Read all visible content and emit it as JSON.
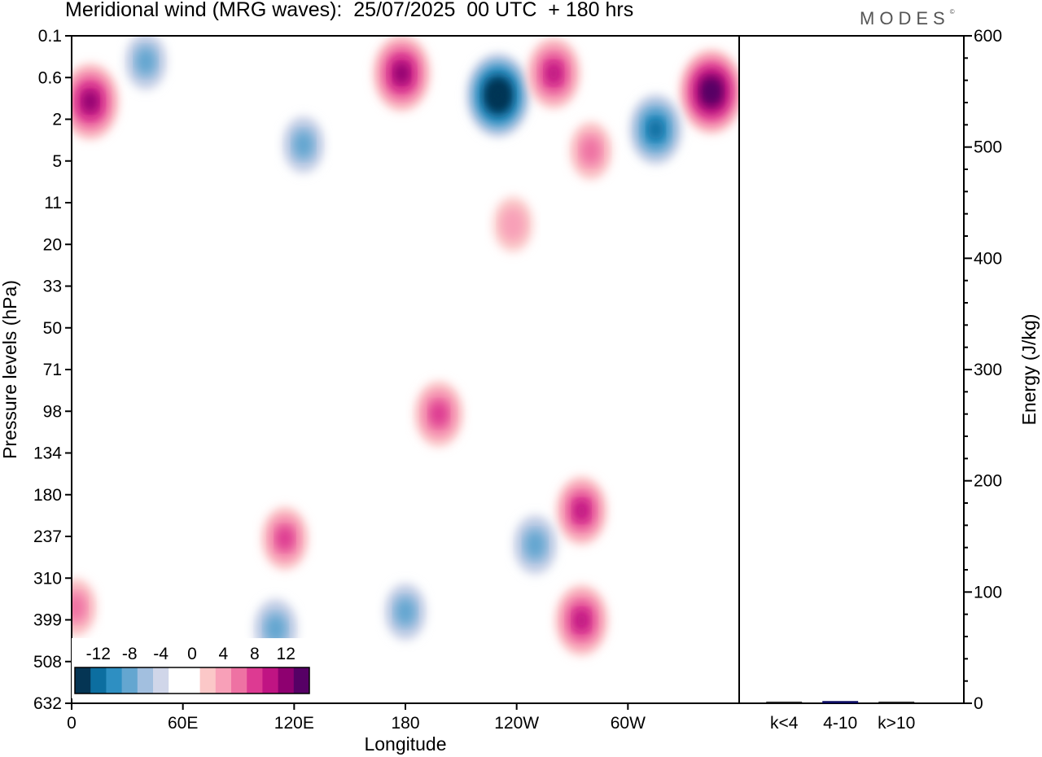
{
  "title": "Meridional wind (MRG waves):  25/07/2025  00 UTC  + 180 hrs",
  "brand": "MODES",
  "chart_data": [
    {
      "type": "heatmap",
      "title": "Meridional wind (MRG waves):  25/07/2025  00 UTC  + 180 hrs",
      "xlabel": "Longitude",
      "ylabel": "Pressure levels (hPa)",
      "x_ticks": [
        "0",
        "60E",
        "120E",
        "180",
        "120W",
        "60W"
      ],
      "x_tick_degrees": [
        0,
        60,
        120,
        180,
        240,
        300
      ],
      "xlim": [
        0,
        360
      ],
      "y_ticks": [
        "0.1",
        "0.6",
        "2",
        "5",
        "11",
        "20",
        "33",
        "50",
        "71",
        "98",
        "134",
        "180",
        "237",
        "310",
        "399",
        "508",
        "632"
      ],
      "colorbar": {
        "labels": [
          "-12",
          "-8",
          "-4",
          "0",
          "4",
          "8",
          "12"
        ],
        "colors": [
          "#053554",
          "#0c6ea0",
          "#2e8fc2",
          "#64a6d0",
          "#a2bfdf",
          "#d0d6e9",
          "#ffffff",
          "#ffffff",
          "#fbc8c8",
          "#f8a0b8",
          "#ee72a3",
          "#dd3a92",
          "#c01483",
          "#8e0070",
          "#560065"
        ]
      },
      "features": [
        {
          "lon": 230,
          "level": 1.0,
          "value": -16
        },
        {
          "lon": 345,
          "level": 0.9,
          "value": 16
        },
        {
          "lon": 10,
          "level": 1.2,
          "value": 13
        },
        {
          "lon": 178,
          "level": 0.5,
          "value": 13
        },
        {
          "lon": 260,
          "level": 0.5,
          "value": 11
        },
        {
          "lon": 315,
          "level": 2.5,
          "value": -11
        },
        {
          "lon": 40,
          "level": 0.3,
          "value": -6
        },
        {
          "lon": 125,
          "level": 3.5,
          "value": -6
        },
        {
          "lon": 280,
          "level": 4.0,
          "value": 6
        },
        {
          "lon": 238,
          "level": 15,
          "value": 5
        },
        {
          "lon": 198,
          "level": 100,
          "value": 9
        },
        {
          "lon": 275,
          "level": 200,
          "value": 10
        },
        {
          "lon": 275,
          "level": 400,
          "value": 11
        },
        {
          "lon": 115,
          "level": 240,
          "value": 8
        },
        {
          "lon": 250,
          "level": 250,
          "value": -7
        },
        {
          "lon": 180,
          "level": 380,
          "value": -6
        },
        {
          "lon": 110,
          "level": 420,
          "value": -7
        },
        {
          "lon": 2,
          "level": 370,
          "value": 6
        }
      ]
    },
    {
      "type": "bar",
      "ylabel": "Energy (J/kg)",
      "categories": [
        "k<4",
        "4-10",
        "k>10"
      ],
      "values": [
        0,
        2,
        0
      ],
      "ylim": [
        0,
        600
      ],
      "y_ticks": [
        "0",
        "100",
        "200",
        "300",
        "400",
        "500",
        "600"
      ]
    }
  ]
}
